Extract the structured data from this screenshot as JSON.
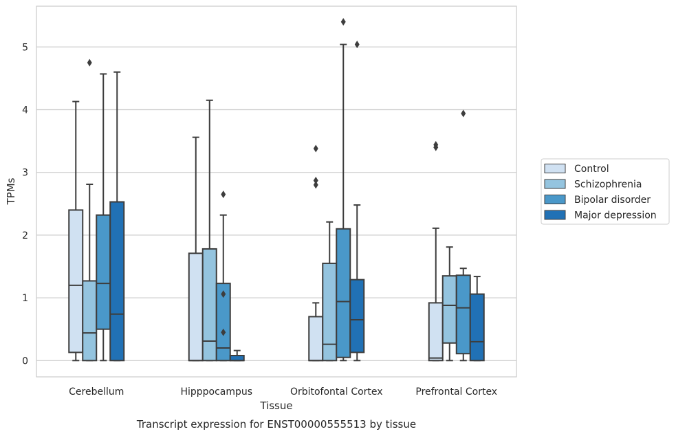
{
  "caption": "Transcript expression for ENST00000555513 by tissue",
  "chart_data": {
    "type": "boxplot",
    "xlabel": "Tissue",
    "ylabel": "TPMs",
    "ylim": [
      -0.26,
      5.65
    ],
    "yticks": [
      0,
      1,
      2,
      3,
      4,
      5
    ],
    "grid": "horizontal",
    "legend_position": "right",
    "categories": [
      "Cerebellum",
      "Hipppocampus",
      "Orbitofontal Cortex",
      "Prefrontal Cortex"
    ],
    "series": [
      {
        "name": "Control",
        "color": "#d0e1f2",
        "boxes": [
          {
            "whisker_low": 0,
            "q1": 0.13,
            "median": 1.2,
            "q3": 2.4,
            "whisker_high": 4.13,
            "outliers": []
          },
          {
            "whisker_low": 0,
            "q1": 0,
            "median": 0,
            "q3": 1.71,
            "whisker_high": 3.56,
            "outliers": []
          },
          {
            "whisker_low": 0,
            "q1": 0,
            "median": 0,
            "q3": 0.7,
            "whisker_high": 0.92,
            "outliers": [
              2.8,
              2.87,
              3.38
            ]
          },
          {
            "whisker_low": 0,
            "q1": 0,
            "median": 0.04,
            "q3": 0.92,
            "whisker_high": 2.11,
            "outliers": [
              3.4,
              3.44
            ]
          }
        ]
      },
      {
        "name": "Schizophrenia",
        "color": "#94c4df",
        "boxes": [
          {
            "whisker_low": 0,
            "q1": 0,
            "median": 0.44,
            "q3": 1.27,
            "whisker_high": 2.81,
            "outliers": [
              4.75
            ]
          },
          {
            "whisker_low": 0,
            "q1": 0,
            "median": 0.31,
            "q3": 1.78,
            "whisker_high": 4.15,
            "outliers": []
          },
          {
            "whisker_low": 0,
            "q1": 0,
            "median": 0.26,
            "q3": 1.55,
            "whisker_high": 2.21,
            "outliers": []
          },
          {
            "whisker_low": 0,
            "q1": 0.28,
            "median": 0.88,
            "q3": 1.35,
            "whisker_high": 1.81,
            "outliers": []
          }
        ]
      },
      {
        "name": "Bipolar disorder",
        "color": "#4a98c9",
        "boxes": [
          {
            "whisker_low": 0,
            "q1": 0.5,
            "median": 1.23,
            "q3": 2.32,
            "whisker_high": 4.57,
            "outliers": []
          },
          {
            "whisker_low": 0,
            "q1": 0,
            "median": 0.2,
            "q3": 1.23,
            "whisker_high": 2.32,
            "outliers": [
              0.45,
              1.06,
              2.65
            ]
          },
          {
            "whisker_low": 0,
            "q1": 0.05,
            "median": 0.94,
            "q3": 2.1,
            "whisker_high": 5.04,
            "outliers": [
              5.4
            ]
          },
          {
            "whisker_low": 0,
            "q1": 0.11,
            "median": 0.84,
            "q3": 1.36,
            "whisker_high": 1.47,
            "outliers": [
              3.94
            ]
          }
        ]
      },
      {
        "name": "Major depression",
        "color": "#2171b5",
        "boxes": [
          {
            "whisker_low": 0,
            "q1": 0,
            "median": 0.74,
            "q3": 2.53,
            "whisker_high": 4.6,
            "outliers": []
          },
          {
            "whisker_low": 0,
            "q1": 0,
            "median": 0,
            "q3": 0.08,
            "whisker_high": 0.16,
            "outliers": []
          },
          {
            "whisker_low": 0,
            "q1": 0.13,
            "median": 0.65,
            "q3": 1.29,
            "whisker_high": 2.48,
            "outliers": [
              5.04
            ]
          },
          {
            "whisker_low": 0,
            "q1": 0,
            "median": 0.3,
            "q3": 1.06,
            "whisker_high": 1.34,
            "outliers": []
          }
        ]
      }
    ]
  }
}
